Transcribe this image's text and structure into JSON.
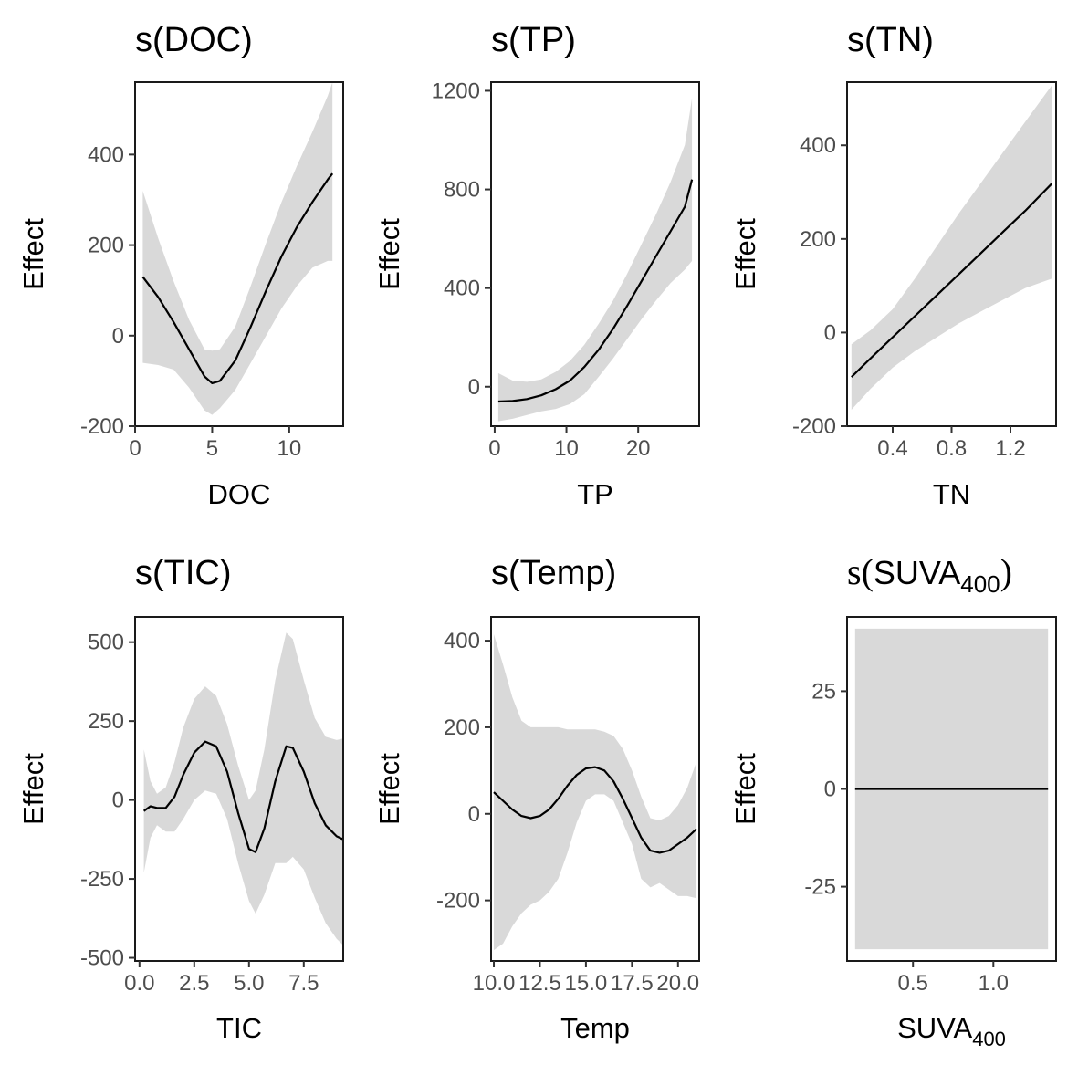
{
  "figure": {
    "background": "#ffffff",
    "band_color": "#d9d9d9",
    "line_color": "#000000"
  },
  "chart_data": [
    {
      "type": "line",
      "title": "s(DOC)",
      "xlabel": "DOC",
      "ylabel": "Effect",
      "xlim": [
        0,
        13.5
      ],
      "ylim": [
        -200,
        560
      ],
      "xticks": [
        0,
        5,
        10
      ],
      "xtick_labels": [
        "0",
        "5",
        "10"
      ],
      "yticks": [
        -200,
        0,
        200,
        400
      ],
      "ytick_labels": [
        "-200",
        "0",
        "200",
        "400"
      ],
      "x": [
        0.5,
        1.5,
        2.5,
        3.5,
        4.5,
        5.0,
        5.5,
        6.5,
        7.5,
        8.5,
        9.5,
        10.5,
        11.5,
        12.5,
        12.8
      ],
      "y": [
        130,
        85,
        30,
        -30,
        -90,
        -105,
        -100,
        -55,
        20,
        100,
        175,
        240,
        295,
        345,
        358
      ],
      "upper": [
        320,
        215,
        120,
        35,
        -30,
        -33,
        -30,
        20,
        110,
        205,
        295,
        375,
        450,
        530,
        560
      ],
      "lower": [
        -60,
        -65,
        -75,
        -115,
        -165,
        -175,
        -160,
        -120,
        -60,
        0,
        60,
        110,
        150,
        165,
        165
      ]
    },
    {
      "type": "line",
      "title": "s(TP)",
      "xlabel": "TP",
      "ylabel": "Effect",
      "xlim": [
        -0.5,
        28.5
      ],
      "ylim": [
        -160,
        1235
      ],
      "xticks": [
        0,
        10,
        20
      ],
      "xtick_labels": [
        "0",
        "10",
        "20"
      ],
      "yticks": [
        0,
        400,
        800,
        1200
      ],
      "ytick_labels": [
        "0",
        "400",
        "800",
        "1200"
      ],
      "x": [
        0.5,
        2.5,
        4.5,
        6.5,
        8.5,
        10.5,
        12.5,
        14.5,
        16.5,
        18.5,
        20.5,
        22.5,
        24.5,
        26.5,
        27.5
      ],
      "y": [
        -60,
        -58,
        -50,
        -35,
        -10,
        25,
        80,
        150,
        235,
        330,
        430,
        530,
        630,
        730,
        840
      ],
      "upper": [
        55,
        25,
        20,
        30,
        60,
        105,
        170,
        255,
        350,
        460,
        580,
        700,
        830,
        980,
        1170
      ],
      "lower": [
        -140,
        -130,
        -115,
        -100,
        -90,
        -70,
        -30,
        40,
        115,
        195,
        275,
        350,
        420,
        475,
        510
      ]
    },
    {
      "type": "line",
      "title": "s(TN)",
      "xlabel": "TN",
      "ylabel": "Effect",
      "xlim": [
        0.09,
        1.51
      ],
      "ylim": [
        -200,
        535
      ],
      "xticks": [
        0.4,
        0.8,
        1.2
      ],
      "xtick_labels": [
        "0.4",
        "0.8",
        "1.2"
      ],
      "yticks": [
        -200,
        0,
        200,
        400
      ],
      "ytick_labels": [
        "-200",
        "0",
        "200",
        "400"
      ],
      "x": [
        0.12,
        0.25,
        0.4,
        0.55,
        0.7,
        0.85,
        1.0,
        1.15,
        1.3,
        1.48
      ],
      "y": [
        -95,
        -55,
        -10,
        35,
        80,
        125,
        170,
        215,
        260,
        318
      ],
      "upper": [
        -25,
        5,
        50,
        115,
        185,
        255,
        320,
        385,
        450,
        528
      ],
      "lower": [
        -165,
        -120,
        -75,
        -40,
        -10,
        20,
        45,
        70,
        95,
        115
      ]
    },
    {
      "type": "line",
      "title": "s(TIC)",
      "xlabel": "TIC",
      "ylabel": "Effect",
      "xlim": [
        -0.2,
        9.3
      ],
      "ylim": [
        -510,
        580
      ],
      "xticks": [
        0,
        2.5,
        5,
        7.5
      ],
      "xtick_labels": [
        "0.0",
        "2.5",
        "5.0",
        "7.5"
      ],
      "yticks": [
        -500,
        -250,
        0,
        250,
        500
      ],
      "ytick_labels": [
        "-500",
        "-250",
        "0",
        "250",
        "500"
      ],
      "x": [
        0.2,
        0.5,
        0.8,
        1.2,
        1.6,
        2.0,
        2.5,
        3.0,
        3.5,
        4.0,
        4.5,
        5.0,
        5.3,
        5.7,
        6.2,
        6.7,
        7.0,
        7.5,
        8.0,
        8.5,
        9.0,
        9.3
      ],
      "y": [
        -35,
        -20,
        -25,
        -25,
        10,
        80,
        150,
        185,
        170,
        90,
        -40,
        -155,
        -165,
        -90,
        60,
        170,
        165,
        90,
        -10,
        -80,
        -115,
        -125
      ],
      "upper": [
        160,
        60,
        20,
        40,
        120,
        230,
        320,
        360,
        330,
        240,
        110,
        0,
        30,
        160,
        380,
        530,
        510,
        380,
        260,
        200,
        190,
        195
      ],
      "lower": [
        -230,
        -120,
        -80,
        -100,
        -100,
        -60,
        0,
        30,
        20,
        -60,
        -200,
        -320,
        -360,
        -300,
        -200,
        -200,
        -180,
        -220,
        -310,
        -390,
        -440,
        -460
      ]
    },
    {
      "type": "line",
      "title": "s(Temp)",
      "xlabel": "Temp",
      "ylabel": "Effect",
      "xlim": [
        9.85,
        21.15
      ],
      "ylim": [
        -340,
        455
      ],
      "xticks": [
        10,
        12.5,
        15,
        17.5,
        20
      ],
      "xtick_labels": [
        "10.0",
        "12.5",
        "15.0",
        "17.5",
        "20.0"
      ],
      "yticks": [
        -200,
        0,
        200,
        400
      ],
      "ytick_labels": [
        "-200",
        "0",
        "200",
        "400"
      ],
      "x": [
        10.0,
        10.5,
        11.0,
        11.5,
        12.0,
        12.5,
        13.0,
        13.5,
        14.0,
        14.5,
        15.0,
        15.5,
        16.0,
        16.5,
        17.0,
        17.5,
        18.0,
        18.5,
        19.0,
        19.5,
        20.0,
        20.5,
        21.0
      ],
      "y": [
        50,
        30,
        10,
        -5,
        -10,
        -5,
        10,
        35,
        65,
        90,
        105,
        108,
        100,
        75,
        35,
        -10,
        -55,
        -85,
        -90,
        -85,
        -70,
        -55,
        -35
      ],
      "upper": [
        415,
        345,
        270,
        215,
        200,
        200,
        200,
        200,
        195,
        195,
        195,
        195,
        190,
        180,
        150,
        100,
        40,
        -10,
        -15,
        -5,
        20,
        60,
        120
      ],
      "lower": [
        -315,
        -300,
        -260,
        -230,
        -210,
        -200,
        -180,
        -150,
        -90,
        -20,
        30,
        45,
        45,
        30,
        -20,
        -70,
        -150,
        -170,
        -160,
        -175,
        -190,
        -190,
        -195
      ]
    },
    {
      "type": "line",
      "title": "s(SUVA400)",
      "xlabel": "SUVA400",
      "ylabel": "Effect",
      "xlim": [
        0.09,
        1.39
      ],
      "ylim": [
        -44,
        44
      ],
      "xticks": [
        0.5,
        1.0
      ],
      "xtick_labels": [
        "0.5",
        "1.0"
      ],
      "yticks": [
        -25,
        0,
        25
      ],
      "ytick_labels": [
        "-25",
        "0",
        "25"
      ],
      "x": [
        0.14,
        1.34
      ],
      "y": [
        0,
        0
      ],
      "upper": [
        41,
        41
      ],
      "lower": [
        -41,
        -41
      ]
    }
  ]
}
